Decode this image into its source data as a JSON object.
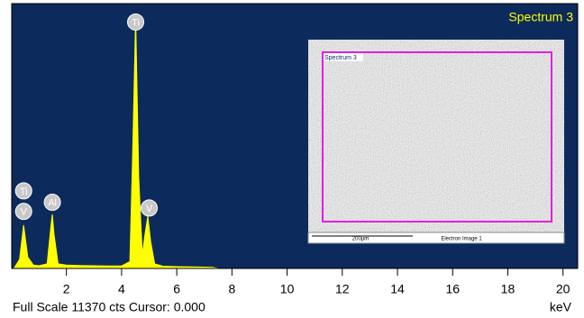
{
  "chart_data": {
    "type": "area",
    "title": "Spectrum 3",
    "x_label": "keV",
    "footer": "Full Scale 11370 cts Cursor: 0.000",
    "color": "#ffff00",
    "x": [
      0.1,
      0.3,
      0.45,
      0.6,
      0.8,
      1.0,
      1.3,
      1.45,
      1.49,
      1.55,
      1.7,
      2.0,
      2.5,
      3.0,
      3.5,
      4.0,
      4.3,
      4.4,
      4.51,
      4.62,
      4.75,
      4.85,
      4.95,
      5.05,
      5.2,
      5.5,
      6.0,
      6.5,
      7.0,
      7.3,
      7.5,
      8.0,
      10.0,
      20.0
    ],
    "values": [
      0,
      400,
      1900,
      500,
      150,
      120,
      200,
      2000,
      2370,
      1500,
      200,
      150,
      130,
      120,
      110,
      110,
      300,
      5000,
      11000,
      4000,
      600,
      1500,
      2290,
      1200,
      200,
      100,
      80,
      70,
      60,
      50,
      0,
      0,
      0,
      0
    ],
    "xlim": [
      0.05,
      20.5
    ],
    "ylim": [
      0,
      11370
    ],
    "xticks": [
      2,
      4,
      6,
      8,
      10,
      12,
      14,
      16,
      18,
      20
    ],
    "annotations": [
      {
        "text": "Ti",
        "x": 0.45,
        "y": 3400
      },
      {
        "text": "V",
        "x": 0.45,
        "y": 2500
      },
      {
        "text": "Al",
        "x": 1.49,
        "y": 2900
      },
      {
        "text": "Ti",
        "x": 4.51,
        "y": 10800
      },
      {
        "text": "V",
        "x": 5.0,
        "y": 2650
      }
    ]
  },
  "inset": {
    "label": "Spectrum 3",
    "scale_bar": "200µm",
    "caption": "Electron Image 1"
  }
}
